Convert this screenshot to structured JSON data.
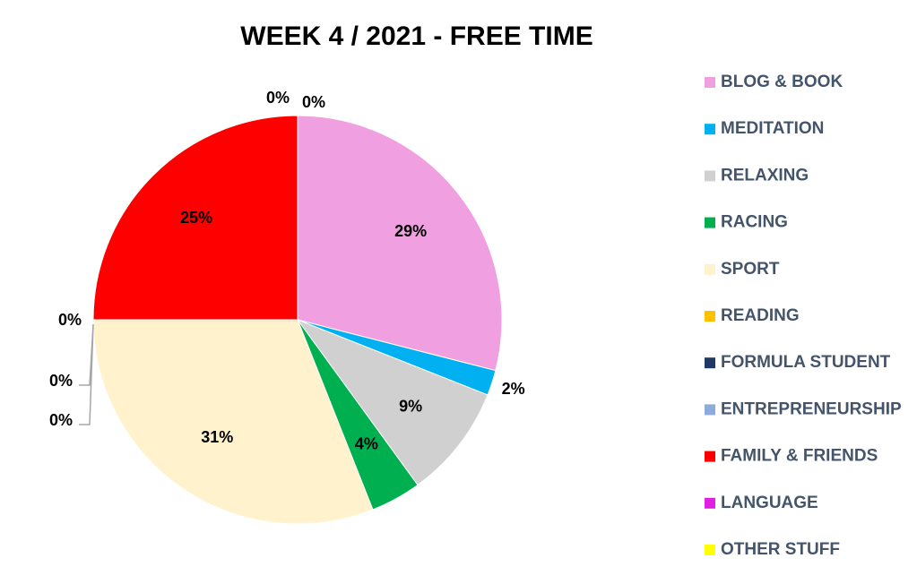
{
  "chart_data": {
    "type": "pie",
    "title": "WEEK 4 / 2021 - FREE TIME",
    "categories": [
      "BLOG & BOOK",
      "MEDITATION",
      "RELAXING",
      "RACING",
      "SPORT",
      "READING",
      "FORMULA STUDENT",
      "ENTREPRENEURSHIP",
      "FAMILY & FRIENDS",
      "LANGUAGE",
      "OTHER STUFF"
    ],
    "values": [
      29,
      2,
      9,
      4,
      31,
      0,
      0,
      0,
      25,
      0,
      0
    ],
    "value_labels": [
      "29%",
      "2%",
      "9%",
      "4%",
      "31%",
      "0%",
      "0%",
      "0%",
      "25%",
      "0%",
      "0%"
    ],
    "colors": [
      "#f0a0e0",
      "#00b0f0",
      "#d0d0d0",
      "#00b050",
      "#fff2cc",
      "#ffc000",
      "#1f3864",
      "#8eaadb",
      "#ff0000",
      "#e020e0",
      "#ffff00"
    ],
    "legend": "right"
  }
}
